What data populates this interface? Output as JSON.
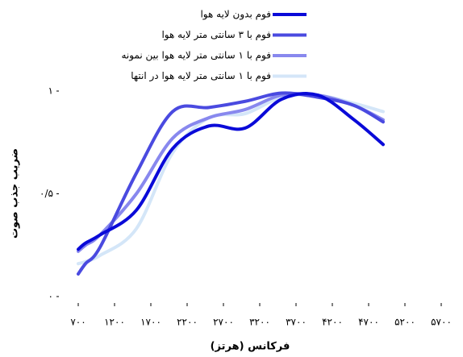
{
  "chart_data": {
    "type": "line",
    "xlabel": "فرکانس (هرتز)",
    "ylabel": "ضریب جذب صوت",
    "x": [
      700,
      800,
      1000,
      1500,
      2000,
      2500,
      3000,
      3500,
      4000,
      4500,
      4900
    ],
    "series": [
      {
        "name": "فوم بدون لایه هوا",
        "color": "#0a0ad8",
        "values": [
          0.23,
          0.26,
          0.3,
          0.42,
          0.72,
          0.83,
          0.82,
          0.96,
          0.98,
          0.86,
          0.74
        ]
      },
      {
        "name": "فوم با ۳ سانتی متر لایه هوا",
        "color": "#4a4ae0",
        "values": [
          0.11,
          0.16,
          0.24,
          0.6,
          0.9,
          0.92,
          0.95,
          0.99,
          0.97,
          0.93,
          0.85
        ]
      },
      {
        "name": "فوم با ۱ سانتی متر لایه هوا بین نمونه",
        "color": "#8888ee",
        "values": [
          0.22,
          0.25,
          0.3,
          0.5,
          0.77,
          0.87,
          0.91,
          0.98,
          0.98,
          0.93,
          0.86
        ]
      },
      {
        "name": "فوم با ۱ سانتی متر لایه هوا در انتها",
        "color": "#d4e6f8",
        "values": [
          0.16,
          0.17,
          0.2,
          0.33,
          0.7,
          0.87,
          0.89,
          0.97,
          0.98,
          0.94,
          0.9
        ]
      }
    ],
    "xlim": [
      700,
      5700
    ],
    "xticks": [
      {
        "value": 700,
        "label": "۷۰۰"
      },
      {
        "value": 1200,
        "label": "۱۲۰۰"
      },
      {
        "value": 1700,
        "label": "۱۷۰۰"
      },
      {
        "value": 2200,
        "label": "۲۲۰۰"
      },
      {
        "value": 2700,
        "label": "۲۷۰۰"
      },
      {
        "value": 3200,
        "label": "۳۲۰۰"
      },
      {
        "value": 3700,
        "label": "۳۷۰۰"
      },
      {
        "value": 4200,
        "label": "۴۲۰۰"
      },
      {
        "value": 4700,
        "label": "۴۷۰۰"
      },
      {
        "value": 5200,
        "label": "۵۲۰۰"
      },
      {
        "value": 5700,
        "label": "۵۷۰۰"
      }
    ],
    "ylim": [
      0,
      1
    ],
    "yticks": [
      {
        "value": 0,
        "label": "٠"
      },
      {
        "value": 0.5,
        "label": "٠/۵"
      },
      {
        "value": 1,
        "label": "۱"
      }
    ],
    "legend": "top-right"
  }
}
